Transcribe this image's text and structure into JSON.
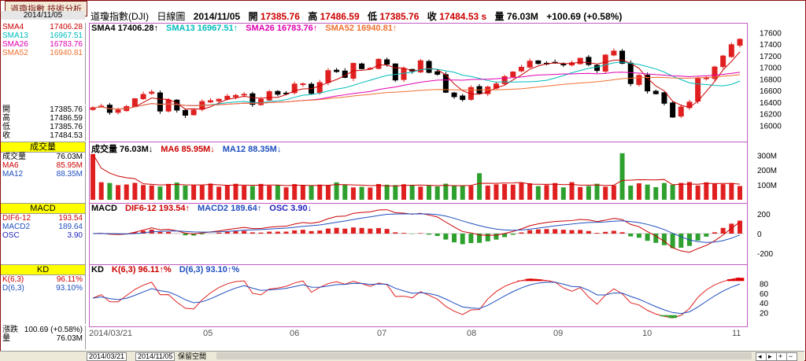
{
  "title_tab": "道瓊指數 技術分析",
  "date": "2014/11/05",
  "header": {
    "name": "道瓊指數(DJI)",
    "period": "日線圖",
    "date": "2014/11/05",
    "open_label": "開",
    "open": "17385.76",
    "high_label": "高",
    "high": "17486.59",
    "low_label": "低",
    "low": "17385.76",
    "close_label": "收",
    "close": "17484.53 s",
    "vol_label": "量",
    "vol": "76.03M",
    "change": "+100.69 (+0.58%)"
  },
  "sma_panel": [
    {
      "label": "SMA4",
      "value": "17406.28",
      "color": "#cc0000"
    },
    {
      "label": "SMA13",
      "value": "16967.51",
      "color": "#00bcbc"
    },
    {
      "label": "SMA26",
      "value": "16783.76",
      "color": "#e000b0"
    },
    {
      "label": "SMA52",
      "value": "16940.81",
      "color": "#f07030"
    }
  ],
  "ohlc_panel": [
    {
      "label": "開",
      "value": "17385.76"
    },
    {
      "label": "高",
      "value": "17486.59"
    },
    {
      "label": "低",
      "value": "17385.76"
    },
    {
      "label": "收",
      "value": "17484.53"
    }
  ],
  "vol_panel": {
    "title": "成交量",
    "rows": [
      {
        "label": "成交量",
        "value": "76.03M",
        "color": "#000"
      },
      {
        "label": "MA6",
        "value": "85.95M",
        "color": "#cc0000"
      },
      {
        "label": "MA12",
        "value": "88.35M",
        "color": "#1f4fbf"
      }
    ]
  },
  "macd_panel": {
    "title": "MACD",
    "rows": [
      {
        "label": "DIF6-12",
        "value": "193.54",
        "color": "#cc0000"
      },
      {
        "label": "MACD2",
        "value": "189.64",
        "color": "#1f4fbf"
      },
      {
        "label": "OSC",
        "value": "3.90",
        "color": "#1f1fbf"
      }
    ]
  },
  "kd_panel": {
    "title": "KD",
    "rows": [
      {
        "label": "K(6,3)",
        "value": "96.11%",
        "color": "#cc0000"
      },
      {
        "label": "D(6,3)",
        "value": "93.10%",
        "color": "#1f4fbf"
      }
    ]
  },
  "change_panel": [
    {
      "label": "漲跌",
      "value": "100.69 (+0.58%)"
    },
    {
      "label": "量",
      "value": "76.03M"
    }
  ],
  "legends": {
    "price": [
      {
        "text": "SMA4 17406.28↑",
        "color": "#000"
      },
      {
        "text": "SMA13 16967.51↑",
        "color": "#00bcbc"
      },
      {
        "text": "SMA26 16783.76↑",
        "color": "#e000b0"
      },
      {
        "text": "SMA52 16940.81↑",
        "color": "#f07030"
      }
    ],
    "vol": [
      {
        "text": "成交量  76.03M↓",
        "color": "#000"
      },
      {
        "text": "MA6 85.95M↓",
        "color": "#cc0000"
      },
      {
        "text": "MA12 88.35M↓",
        "color": "#1f4fbf"
      }
    ],
    "macd": [
      {
        "text": "MACD",
        "color": "#000"
      },
      {
        "text": "DIF6-12 193.54↑",
        "color": "#cc0000"
      },
      {
        "text": "MACD2 189.64↑",
        "color": "#1f4fbf"
      },
      {
        "text": "OSC 3.90↓",
        "color": "#1f1fbf"
      }
    ],
    "kd": [
      {
        "text": "KD",
        "color": "#000"
      },
      {
        "text": "K(6,3) 96.11↑%",
        "color": "#cc0000"
      },
      {
        "text": "D(6,3) 93.10↑%",
        "color": "#1f4fbf"
      }
    ]
  },
  "chart_data": [
    {
      "type": "candlestick",
      "title": "道瓊指數(DJI) 日線圖",
      "ylim": [
        15800,
        17700
      ],
      "yticks": [
        16000,
        16200,
        16400,
        16600,
        16800,
        17000,
        17200,
        17400,
        17600
      ],
      "x_labels": [
        "2014/03/21",
        "05",
        "06",
        "07",
        "08",
        "09",
        "10",
        "11"
      ],
      "close_approx": [
        16302,
        16331,
        16222,
        16264,
        16323,
        16458,
        16532,
        16573,
        16245,
        16437,
        16262,
        16173,
        16262,
        16409,
        16424,
        16449,
        16501,
        16514,
        16535,
        16361,
        16448,
        16580,
        16535,
        16550,
        16711,
        16715,
        16550,
        16737,
        16943,
        16926,
        16826,
        17068,
        16976,
        16983,
        17138,
        17055,
        16781,
        16980,
        16935,
        17113,
        16912,
        16880,
        16569,
        16493,
        16443,
        16651,
        16554,
        16660,
        16713,
        16839,
        16919,
        17001,
        17106,
        17065,
        17068,
        17073,
        17049,
        17078,
        17156,
        17048,
        16945,
        17211,
        17280,
        17070,
        16719,
        16860,
        16592,
        16544,
        16380,
        16141,
        16315,
        16399,
        16805,
        16817,
        17005,
        17195,
        17390,
        17484
      ]
    },
    {
      "type": "bar",
      "title": "成交量",
      "ylim": [
        0,
        360
      ],
      "yticks_labels": [
        "100M",
        "200M",
        "300M"
      ]
    },
    {
      "type": "bar",
      "title": "MACD",
      "ylim": [
        -260,
        300
      ],
      "yticks": [
        -200,
        0,
        200
      ]
    },
    {
      "type": "line",
      "title": "KD",
      "ylim": [
        0,
        100
      ],
      "yticks": [
        20,
        40,
        60,
        80
      ]
    }
  ],
  "yaxis_labels": {
    "price": [
      "17600",
      "17400",
      "17200",
      "17000",
      "16800",
      "16600",
      "16400",
      "16200",
      "16000"
    ],
    "vol": [
      "300M",
      "200M",
      "100M"
    ],
    "macd": [
      "200",
      "0",
      "-200"
    ],
    "kd": [
      "80",
      "60",
      "40",
      "20"
    ]
  },
  "xaxis": [
    "2014/03/21",
    "05",
    "06",
    "07",
    "08",
    "09",
    "10",
    "11"
  ],
  "bottom": {
    "start": "2014/03/21",
    "end": "2014/11/05",
    "tab": "保留空間"
  }
}
